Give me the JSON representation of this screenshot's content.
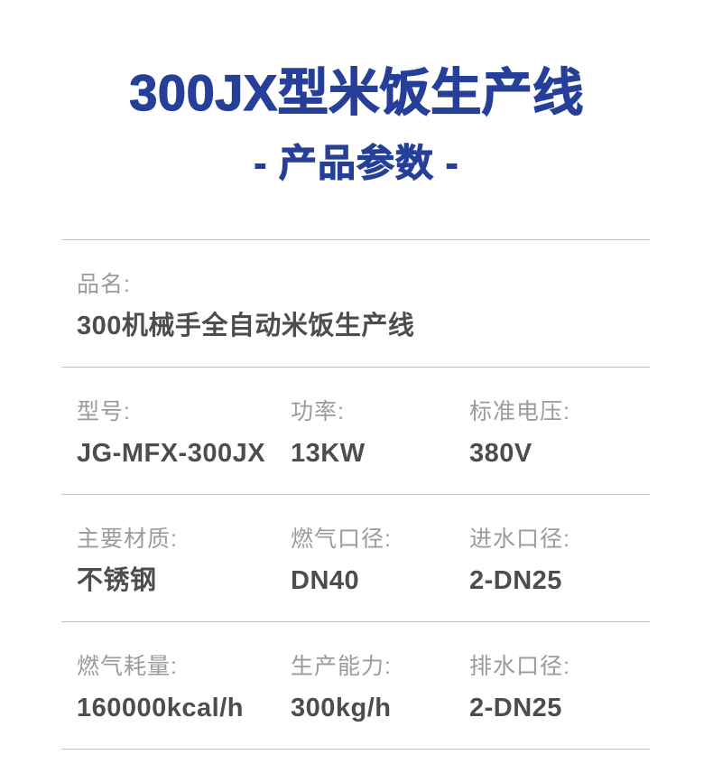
{
  "colors": {
    "accent": "#263f99",
    "label": "#9b9b9b",
    "value": "#4d4d4d",
    "divider": "#c3c3c7",
    "background": "#ffffff"
  },
  "header": {
    "title": "300JX型米饭生产线",
    "subtitle": "- 产品参数 -"
  },
  "spec_table": {
    "rows": [
      {
        "cells": [
          {
            "label": "品名:",
            "value": "300机械手全自动米饭生产线"
          }
        ]
      },
      {
        "cells": [
          {
            "label": "型号:",
            "value": "JG-MFX-300JX"
          },
          {
            "label": "功率:",
            "value": "13KW"
          },
          {
            "label": "标准电压:",
            "value": "380V"
          }
        ]
      },
      {
        "cells": [
          {
            "label": "主要材质:",
            "value": "不锈钢"
          },
          {
            "label": "燃气口径:",
            "value": "DN40"
          },
          {
            "label": "进水口径:",
            "value": "2-DN25"
          }
        ]
      },
      {
        "cells": [
          {
            "label": "燃气耗量:",
            "value": "160000kcal/h"
          },
          {
            "label": "生产能力:",
            "value": "300kg/h"
          },
          {
            "label": "排水口径:",
            "value": "2-DN25"
          }
        ]
      }
    ]
  }
}
